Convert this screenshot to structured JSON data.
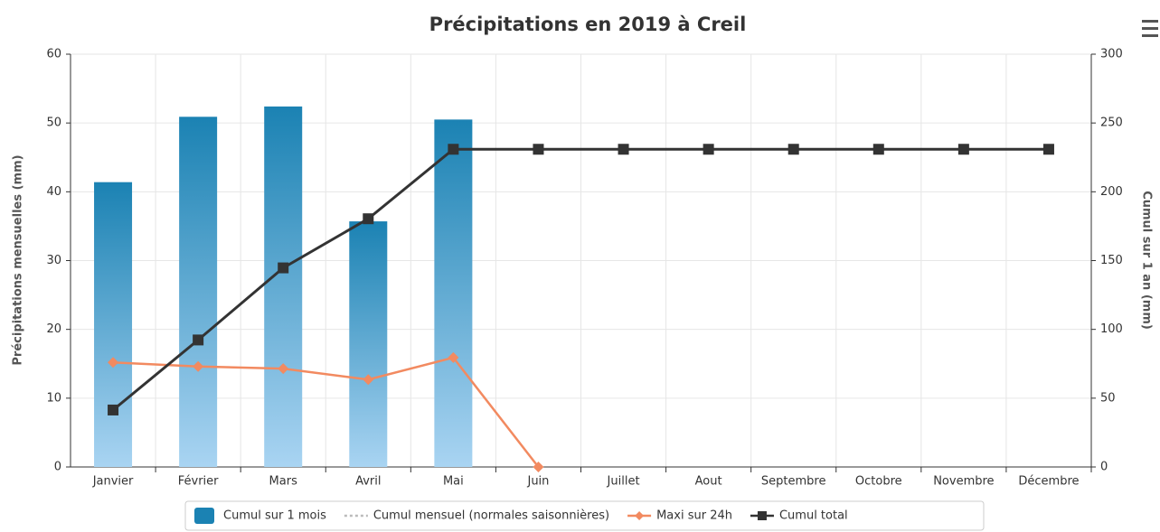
{
  "chart_data": {
    "type": "combo",
    "title": "Précipitations en 2019 à Creil",
    "y_label": "Précipitations mensuelles (mm)",
    "y2_label": "Cumul sur 1 an (mm)",
    "categories": [
      "Janvier",
      "Février",
      "Mars",
      "Avril",
      "Mai",
      "Juin",
      "Juillet",
      "Aout",
      "Septembre",
      "Octobre",
      "Novembre",
      "Décembre"
    ],
    "series": [
      {
        "name": "Cumul sur 1 mois",
        "type": "bar",
        "color": "#1b82b3",
        "values": [
          41.4,
          50.9,
          52.4,
          35.7,
          50.5,
          null,
          null,
          null,
          null,
          null,
          null,
          null
        ]
      },
      {
        "name": "Cumul mensuel (normales saisonnières)",
        "type": "dashed",
        "color": "#bbbbbb",
        "values": [
          null,
          null,
          null,
          null,
          null,
          null,
          null,
          null,
          null,
          null,
          null,
          null
        ]
      },
      {
        "name": "Maxi sur 24h",
        "type": "line",
        "color": "#f28a60",
        "values": [
          15.2,
          14.6,
          14.3,
          12.7,
          15.9,
          0,
          null,
          null,
          null,
          null,
          null,
          null
        ]
      },
      {
        "name": "Cumul total",
        "type": "line",
        "axis": "y2",
        "color": "#333333",
        "values": [
          41.4,
          92.3,
          144.7,
          180.4,
          230.9,
          230.9,
          230.9,
          230.9,
          230.9,
          230.9,
          230.9,
          230.9
        ]
      }
    ],
    "ylim": [
      0,
      60
    ],
    "yticks": [
      0,
      10,
      20,
      30,
      40,
      50,
      60
    ],
    "y2lim": [
      0,
      300
    ],
    "y2ticks": [
      0,
      50,
      100,
      150,
      200,
      250,
      300
    ],
    "grid": true,
    "legend": "bottom"
  }
}
